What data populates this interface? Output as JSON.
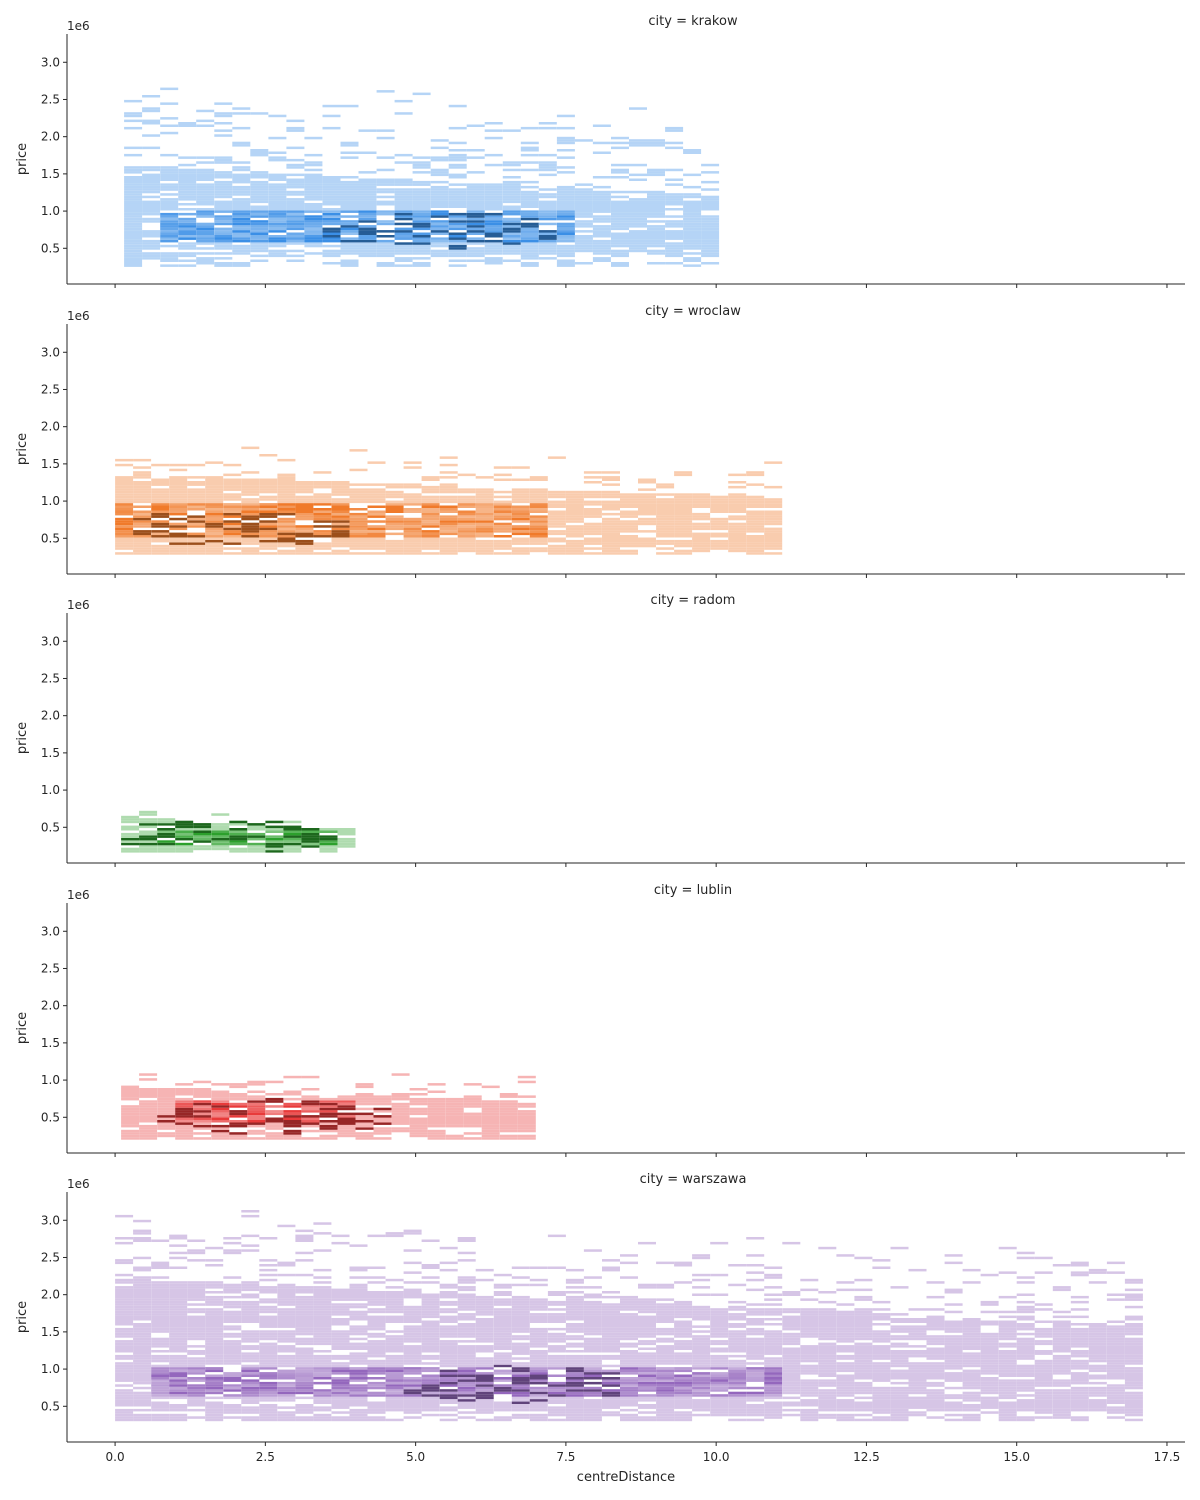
{
  "chart_data": {
    "type": "heatmap",
    "kind": "2d histogram facet grid (price vs centreDistance, one row per city)",
    "xlabel": "centreDistance",
    "ylabel": "price",
    "y_offset_label": "1e6",
    "x_ticks": [
      0.0,
      2.5,
      5.0,
      7.5,
      10.0,
      12.5,
      15.0,
      17.5
    ],
    "x_tick_labels": [
      "0.0",
      "2.5",
      "5.0",
      "7.5",
      "10.0",
      "12.5",
      "15.0",
      "17.5"
    ],
    "y_ticks": [
      0.5,
      1.0,
      1.5,
      2.0,
      2.5,
      3.0
    ],
    "y_tick_labels": [
      "0.5",
      "1.0",
      "1.5",
      "2.0",
      "2.5",
      "3.0"
    ],
    "xlim": [
      -0.8,
      17.8
    ],
    "ylim": [
      0.02,
      3.38
    ],
    "grid": false,
    "facets": [
      {
        "title": "city = krakow",
        "city": "krakow",
        "color": "#3b8fe6",
        "x_range": [
          0.15,
          10.0
        ],
        "y_range": [
          0.25,
          3.0
        ],
        "core_y": [
          0.4,
          1.6
        ],
        "dense_x": [
          0.5,
          7.5
        ],
        "dense_y": [
          0.55,
          1.0
        ],
        "peak": [
          5.3,
          0.72
        ],
        "label_x": 0.68
      },
      {
        "title": "city = wroclaw",
        "city": "wroclaw",
        "color": "#f07a2a",
        "x_range": [
          0.0,
          11.0
        ],
        "y_range": [
          0.28,
          1.78
        ],
        "core_y": [
          0.4,
          1.35
        ],
        "dense_x": [
          0.0,
          7.0
        ],
        "dense_y": [
          0.5,
          0.95
        ],
        "peak": [
          1.9,
          0.62
        ],
        "label_x": 0.68
      },
      {
        "title": "city = radom",
        "city": "radom",
        "color": "#2ca02c",
        "x_range": [
          0.1,
          3.9
        ],
        "y_range": [
          0.16,
          0.75
        ],
        "core_y": [
          0.22,
          0.6
        ],
        "dense_x": [
          0.5,
          3.5
        ],
        "dense_y": [
          0.25,
          0.45
        ],
        "peak": [
          1.6,
          0.35
        ],
        "label_x": 0.68
      },
      {
        "title": "city = lublin",
        "city": "lublin",
        "color": "#e83a3a",
        "x_range": [
          0.1,
          6.8
        ],
        "y_range": [
          0.2,
          1.2
        ],
        "core_y": [
          0.3,
          0.9
        ],
        "dense_x": [
          0.8,
          3.8
        ],
        "dense_y": [
          0.4,
          0.7
        ],
        "peak": [
          2.6,
          0.5
        ],
        "label_x": 0.68
      },
      {
        "title": "city = warszawa",
        "city": "warszawa",
        "color": "#9467bd",
        "x_range": [
          0.0,
          16.9
        ],
        "y_range": [
          0.3,
          3.22
        ],
        "core_y": [
          0.4,
          2.2
        ],
        "dense_x": [
          0.5,
          11.0
        ],
        "dense_y": [
          0.6,
          1.0
        ],
        "peak": [
          6.5,
          0.78
        ],
        "label_x": 0.68
      }
    ]
  }
}
